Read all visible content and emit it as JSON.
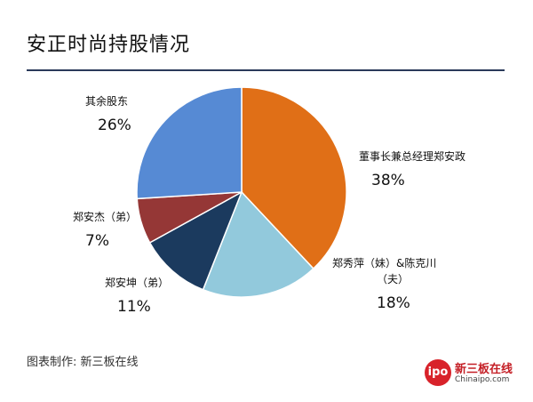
{
  "header": {
    "title": "安正时尚持股情况"
  },
  "footer": {
    "source": "图表制作: 新三板在线"
  },
  "logo": {
    "badge": "ipo",
    "name": "新三板在线",
    "site": "Chinaipo.com"
  },
  "chart_data": {
    "type": "pie",
    "title": "安正时尚持股情况",
    "start_angle_deg": 0,
    "direction": "clockwise",
    "slices": [
      {
        "label": "董事长兼总经理郑安政",
        "value": 38,
        "display": "38%",
        "color": "#e06f17"
      },
      {
        "label": "郑秀萍（妹）&陈克川（夫）",
        "label_lines": [
          "郑秀萍（妹）&陈克川",
          "（夫）"
        ],
        "value": 18,
        "display": "18%",
        "color": "#92c9dc"
      },
      {
        "label": "郑安坤（弟）",
        "value": 11,
        "display": "11%",
        "color": "#1b3a5e"
      },
      {
        "label": "郑安杰（弟）",
        "value": 7,
        "display": "7%",
        "color": "#953736"
      },
      {
        "label": "其余股东",
        "value": 26,
        "display": "26%",
        "color": "#568ad4"
      }
    ]
  }
}
